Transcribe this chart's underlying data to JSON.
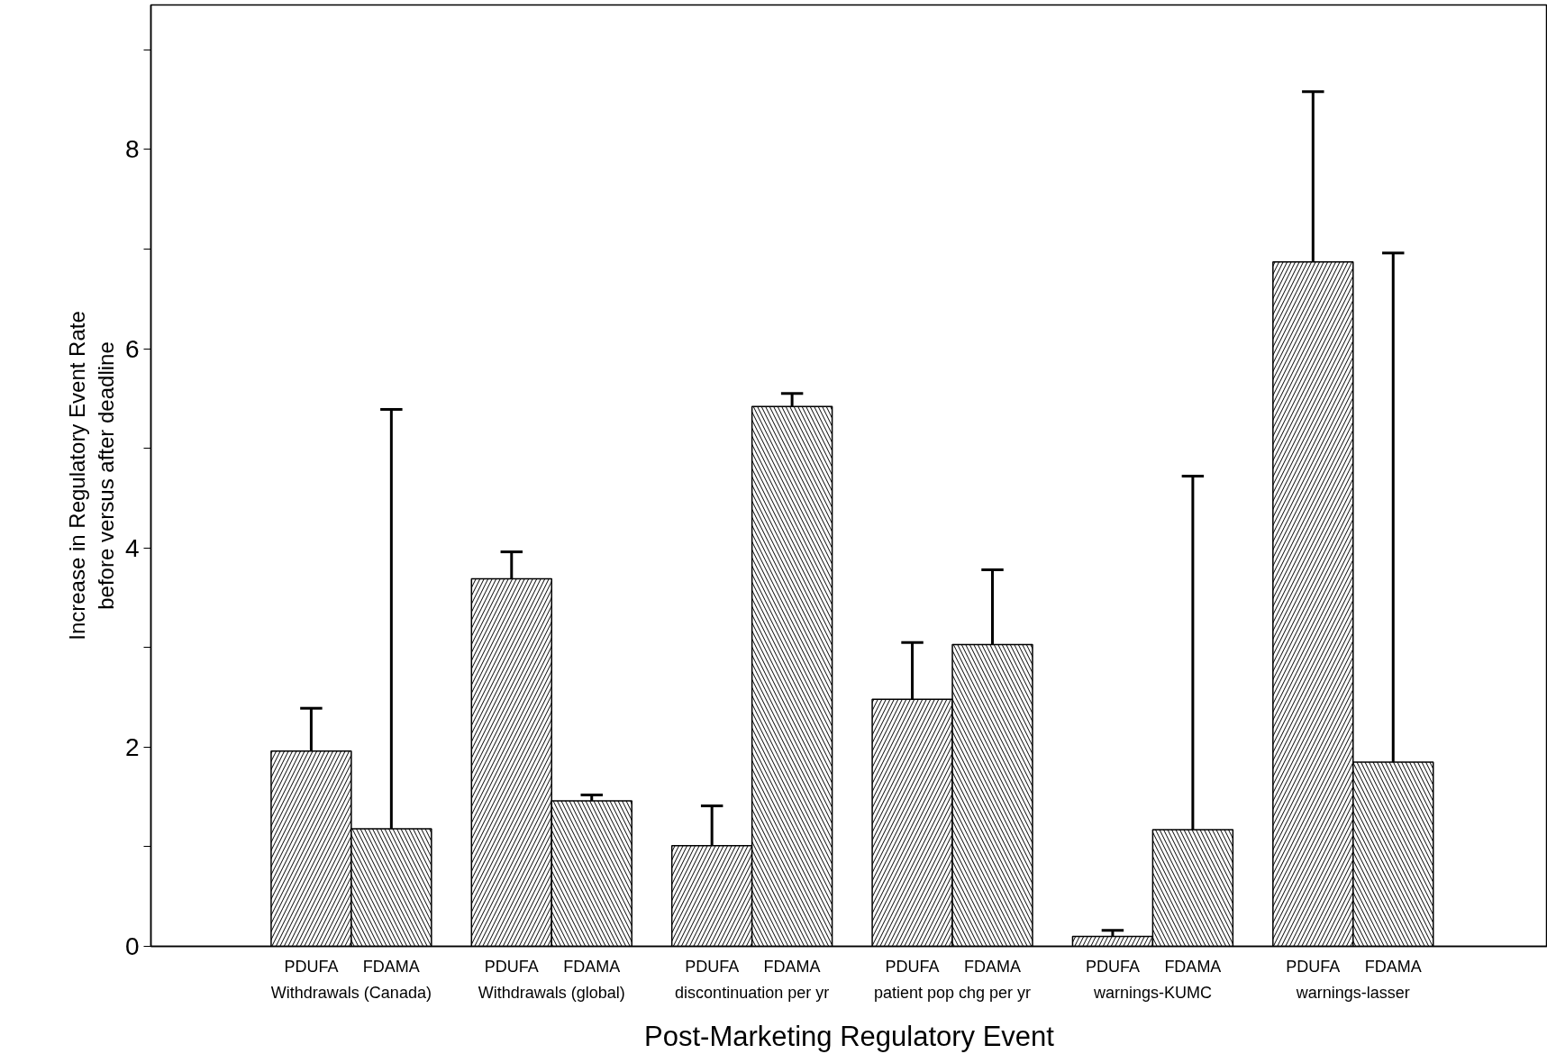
{
  "chart_data": {
    "type": "bar",
    "xlabel": "Post-Marketing Regulatory Event",
    "ylabel": "Increase in Regulatory Event Rate\nbefore versus after deadline",
    "categories": [
      "Withdrawals (Canada)",
      "Withdrawals (global)",
      "discontinuation per yr",
      "patient pop chg per yr",
      "warnings-KUMC",
      "warnings-lasser"
    ],
    "series": [
      {
        "name": "PDUFA",
        "color": "#000000",
        "values": [
          1.96,
          3.69,
          1.01,
          2.48,
          0.1,
          6.87
        ],
        "errors": [
          [
            1.96,
            2.39
          ],
          [
            3.69,
            3.96
          ],
          [
            1.01,
            1.41
          ],
          [
            2.48,
            3.05
          ],
          [
            0.1,
            0.16
          ],
          [
            6.87,
            8.58
          ]
        ]
      },
      {
        "name": "FDAMA",
        "color": "#000000",
        "values": [
          1.18,
          1.46,
          5.42,
          3.03,
          1.17,
          1.85
        ],
        "errors": [
          [
            1.18,
            5.39
          ],
          [
            1.46,
            1.52
          ],
          [
            5.42,
            5.55
          ],
          [
            3.03,
            3.78
          ],
          [
            1.17,
            4.72
          ],
          [
            1.85,
            6.96
          ]
        ]
      }
    ],
    "ylim": [
      0,
      9.45
    ],
    "yticks": [
      0,
      {
        "value": 1,
        "label": null
      },
      2,
      {
        "value": 3,
        "label": null
      },
      4,
      {
        "value": 5,
        "label": null
      },
      6,
      {
        "value": 7,
        "label": null
      },
      8,
      {
        "value": 9,
        "label": null
      }
    ],
    "grid": false
  }
}
